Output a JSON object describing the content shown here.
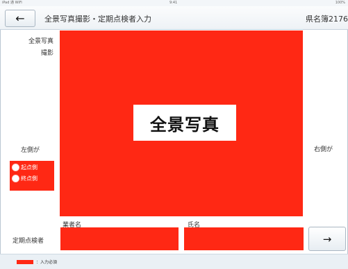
{
  "statusbar": {
    "left": "iPad 通 WiFi",
    "center": "9:41",
    "right": "100%"
  },
  "header": {
    "back_icon": "←",
    "title": "全景写真撮影・定期点検者入力",
    "right_text": "県名簿2176"
  },
  "photo": {
    "label_line1": "全景写真",
    "label_line2": "撮影",
    "placeholder": "全景写真",
    "color": "#ff2814"
  },
  "sides": {
    "left": "左側が",
    "right": "右側が"
  },
  "radios": {
    "option1": "起点側",
    "option2": "終点側"
  },
  "inspector": {
    "row_label": "定期点検者",
    "company_label": "業者名",
    "name_label": "氏名"
  },
  "next_button": {
    "icon": "→"
  },
  "legend": {
    "text": "：入力必須",
    "color": "#ff2814"
  }
}
